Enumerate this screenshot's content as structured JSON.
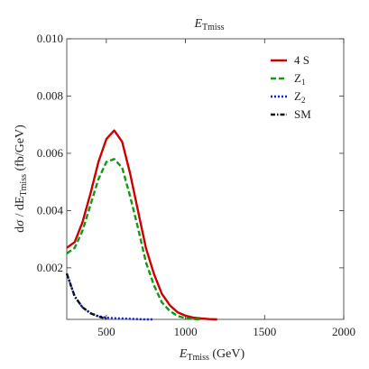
{
  "chart_data": {
    "type": "line",
    "title": "E_Tmiss",
    "xlabel": "E_Tmiss (GeV)",
    "ylabel": "dσ / dE_Tmiss (fb/GeV)",
    "xlim": [
      250,
      2000
    ],
    "ylim": [
      0.0002,
      0.01
    ],
    "x_ticks": [
      500,
      1000,
      1500,
      2000
    ],
    "x_tick_labels": [
      "500",
      "1000",
      "1500",
      "2000"
    ],
    "y_ticks": [
      0.002,
      0.004,
      0.006,
      0.008,
      0.01
    ],
    "y_tick_labels": [
      "0.002",
      "0.004",
      "0.006",
      "0.008",
      "0.010"
    ],
    "legend_position": "top-right",
    "grid": false,
    "series": [
      {
        "name": "4 S",
        "color": "#cc0000",
        "dash": "solid",
        "x": [
          250,
          300,
          350,
          400,
          450,
          500,
          550,
          600,
          650,
          700,
          750,
          800,
          850,
          900,
          950,
          1000,
          1050,
          1100,
          1150,
          1200
        ],
        "y": [
          0.0027,
          0.0029,
          0.0036,
          0.0046,
          0.0057,
          0.0065,
          0.0068,
          0.0064,
          0.0053,
          0.004,
          0.0027,
          0.0018,
          0.0011,
          0.0007,
          0.00045,
          0.00033,
          0.00026,
          0.00023,
          0.00021,
          0.0002
        ]
      },
      {
        "name": "Z_1",
        "color": "#119911",
        "dash": "dashed",
        "x": [
          250,
          300,
          350,
          400,
          450,
          500,
          550,
          600,
          650,
          700,
          750,
          800,
          850,
          900,
          950,
          1000,
          1050,
          1100
        ],
        "y": [
          0.0025,
          0.0027,
          0.0033,
          0.0042,
          0.0051,
          0.0057,
          0.0058,
          0.0055,
          0.0045,
          0.0034,
          0.0022,
          0.0014,
          0.0008,
          0.0005,
          0.00032,
          0.00024,
          0.00021,
          0.0002
        ]
      },
      {
        "name": "Z_2",
        "color": "#1122dd",
        "dash": "dotted",
        "x": [
          250,
          300,
          350,
          400,
          450,
          500,
          550,
          600,
          650,
          700,
          750,
          800
        ],
        "y": [
          0.0018,
          0.001,
          0.00062,
          0.00042,
          0.00031,
          0.00026,
          0.00024,
          0.00023,
          0.00022,
          0.00021,
          0.0002,
          0.0002
        ]
      },
      {
        "name": "SM",
        "color": "#111111",
        "dash": "dashdot",
        "x": [
          250,
          300,
          350,
          400,
          450,
          500
        ],
        "y": [
          0.0018,
          0.001,
          0.00062,
          0.00041,
          0.0003,
          0.00022
        ]
      }
    ]
  }
}
